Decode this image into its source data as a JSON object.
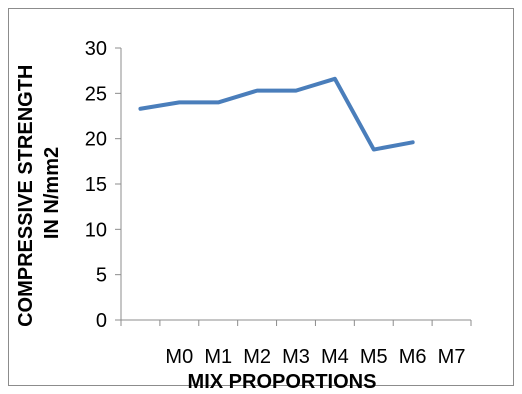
{
  "chart_data": {
    "type": "line",
    "categories": [
      "M0",
      "M1",
      "M2",
      "M3",
      "M4",
      "M5",
      "M6",
      "M7"
    ],
    "series": [
      {
        "values": [
          23.3,
          24.0,
          24.0,
          25.3,
          25.3,
          26.6,
          18.8,
          19.6
        ],
        "color": "#4a7ebb"
      }
    ],
    "title": "",
    "xlabel": "MIX PROPORTIONS",
    "ylabel": "COMPRESSIVE STRENGTH IN N/mm2",
    "ylabel_lines": [
      "COMPRESSIVE STRENGTH",
      "IN N/mm2"
    ],
    "ylim": [
      0,
      30
    ],
    "yticks": [
      "0",
      "5",
      "10",
      "15",
      "20",
      "25",
      "30"
    ],
    "grid": false,
    "legend": "none"
  }
}
